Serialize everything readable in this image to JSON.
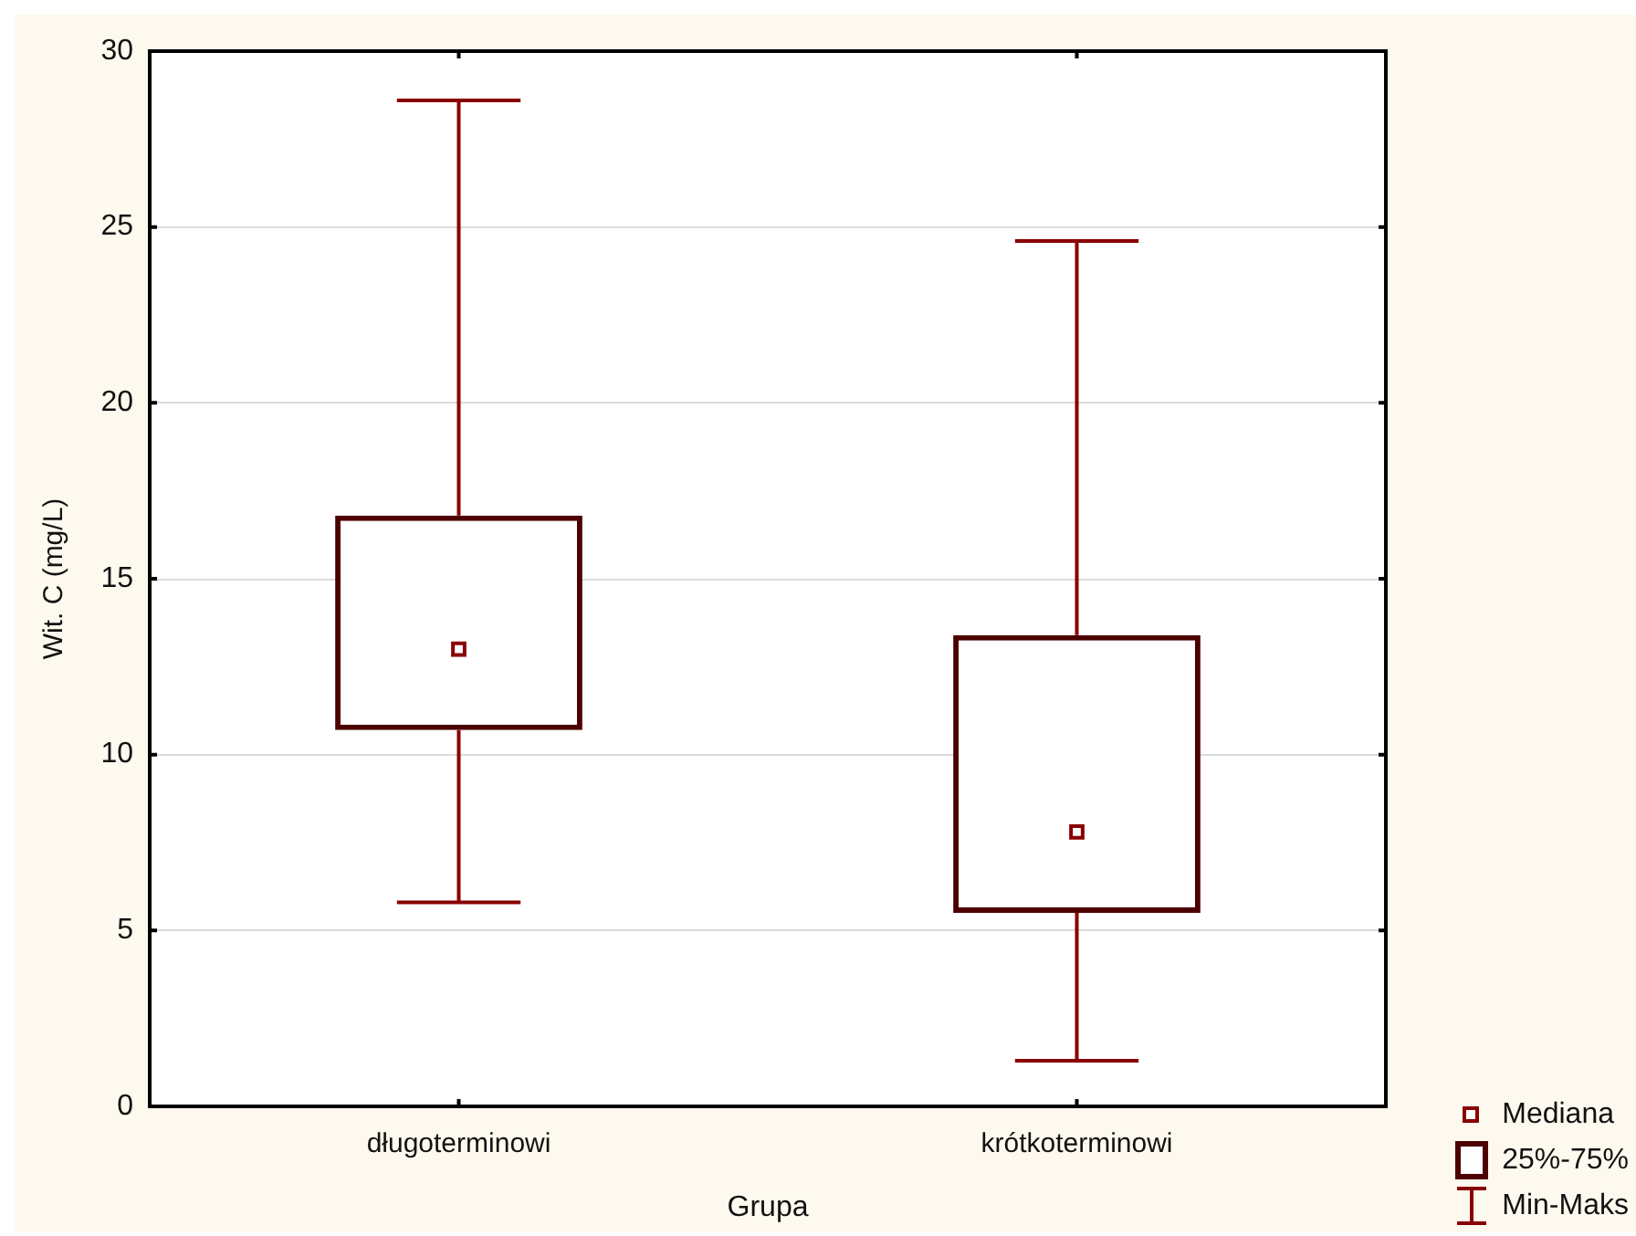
{
  "chart_data": {
    "type": "box",
    "xlabel": "Grupa",
    "ylabel": "Wit. C (mg/L)",
    "categories": [
      "długoterminowi",
      "krótkoterminowi"
    ],
    "boxes": [
      {
        "low": 5.8,
        "q1": 10.7,
        "median": 13,
        "q3": 16.8,
        "high": 28.6
      },
      {
        "low": 1.3,
        "q1": 5.5,
        "median": 7.8,
        "q3": 13.4,
        "high": 24.6
      }
    ],
    "color": "#4c0000",
    "ylim": [
      0,
      30
    ],
    "yticks": [
      0,
      5,
      10,
      15,
      20,
      25,
      30
    ],
    "grid": "y",
    "marker": "square",
    "annotations": [
      "Mediana",
      "25%-75%",
      "Min-Maks"
    ]
  }
}
